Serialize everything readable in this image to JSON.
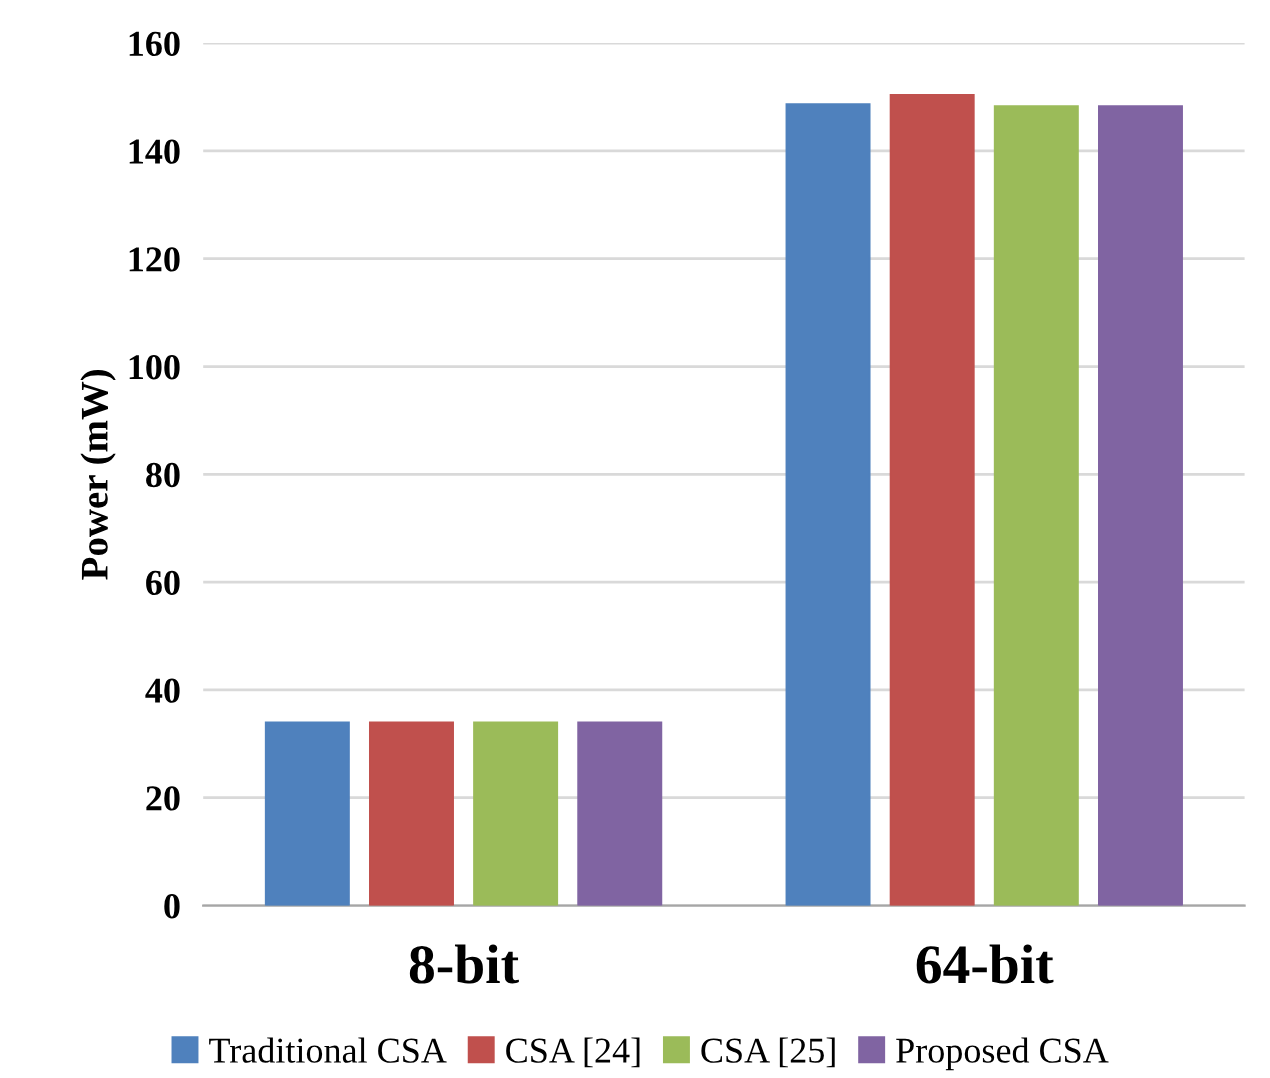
{
  "chart_data": {
    "type": "bar",
    "ylabel": "Power (mW)",
    "categories": [
      "8-bit",
      "64-bit"
    ],
    "series": [
      {
        "name": "Traditional CSA",
        "color": "#4f81bd",
        "values": [
          34,
          148.7
        ]
      },
      {
        "name": "CSA [24]",
        "color": "#c0504d",
        "values": [
          34,
          150.4
        ]
      },
      {
        "name": "CSA [25]",
        "color": "#9bbb59",
        "values": [
          34,
          148.3
        ]
      },
      {
        "name": "Proposed CSA",
        "color": "#8064a2",
        "values": [
          34,
          148.3
        ]
      }
    ],
    "ylim": [
      0,
      160
    ],
    "yticks": [
      0,
      20,
      40,
      60,
      80,
      100,
      120,
      140,
      160
    ],
    "grid": "y",
    "legend": "bottom"
  }
}
